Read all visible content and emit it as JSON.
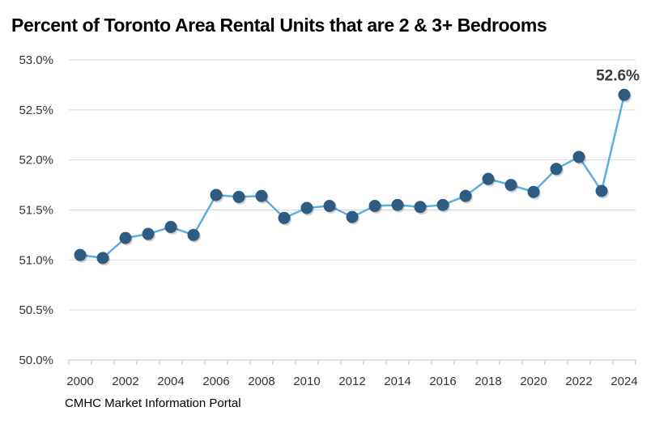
{
  "chart_data": {
    "type": "line",
    "title": "Percent of Toronto Area Rental Units that are 2 & 3+ Bedrooms",
    "xlabel": "",
    "ylabel": "",
    "x": [
      2000,
      2001,
      2002,
      2003,
      2004,
      2005,
      2006,
      2007,
      2008,
      2009,
      2010,
      2011,
      2012,
      2013,
      2014,
      2015,
      2016,
      2017,
      2018,
      2019,
      2020,
      2021,
      2022,
      2023,
      2024
    ],
    "series": [
      {
        "values": [
          51.05,
          51.02,
          51.22,
          51.26,
          51.33,
          51.25,
          51.65,
          51.63,
          51.64,
          51.42,
          51.52,
          51.54,
          51.43,
          51.54,
          51.55,
          51.53,
          51.55,
          51.64,
          51.81,
          51.75,
          51.68,
          51.91,
          52.03,
          51.69,
          52.65
        ],
        "color": "#5aaee0",
        "marker_color": "#2e5b82"
      }
    ],
    "ylim": [
      50.0,
      53.0
    ],
    "yticks": [
      50.0,
      50.5,
      51.0,
      51.5,
      52.0,
      52.5,
      53.0
    ],
    "ytick_labels": [
      "50.0%",
      "50.5%",
      "51.0%",
      "51.5%",
      "52.0%",
      "52.5%",
      "53.0%"
    ],
    "xticks": [
      2000,
      2002,
      2004,
      2006,
      2008,
      2010,
      2012,
      2014,
      2016,
      2018,
      2020,
      2022,
      2024
    ],
    "xtick_labels": [
      "2000",
      "2002",
      "2004",
      "2006",
      "2008",
      "2010",
      "2012",
      "2014",
      "2016",
      "2018",
      "2020",
      "2022",
      "2024"
    ],
    "grid": true,
    "annotations": [
      {
        "x": 2024,
        "text": "52.6%"
      }
    ]
  },
  "source": "CMHC Market Information Portal",
  "colors": {
    "grid": "#d9d9d9",
    "axis": "#bfbfbf",
    "line": "#5aaee0",
    "marker": "#2e5b82"
  }
}
